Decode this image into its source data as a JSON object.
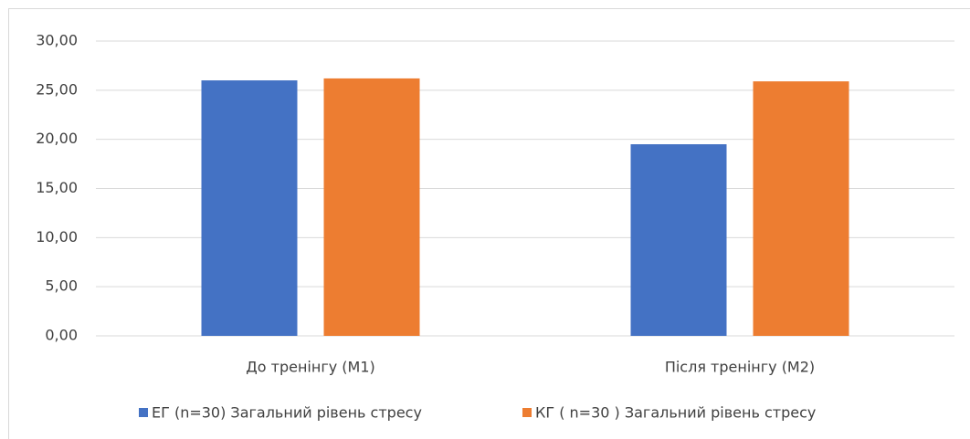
{
  "chart_data": {
    "type": "bar",
    "categories": [
      "До тренінгу (М1)",
      "Після тренінгу (М2)"
    ],
    "series": [
      {
        "name": "ЕГ (n=30) Загальний рівень стресу",
        "color": "#4472c4",
        "values": [
          26.0,
          19.5
        ]
      },
      {
        "name": "КГ ( n=30 ) Загальний рівень стресу",
        "color": "#ed7d31",
        "values": [
          26.2,
          25.9
        ]
      }
    ],
    "ylim": [
      0,
      30
    ],
    "yticks": [
      {
        "value": 0,
        "label": "0,00"
      },
      {
        "value": 5,
        "label": "5,00"
      },
      {
        "value": 10,
        "label": "10,00"
      },
      {
        "value": 15,
        "label": "15,00"
      },
      {
        "value": 20,
        "label": "20,00"
      },
      {
        "value": 25,
        "label": "25,00"
      },
      {
        "value": 30,
        "label": "30,00"
      }
    ],
    "grid": true,
    "legend": "bottom"
  }
}
